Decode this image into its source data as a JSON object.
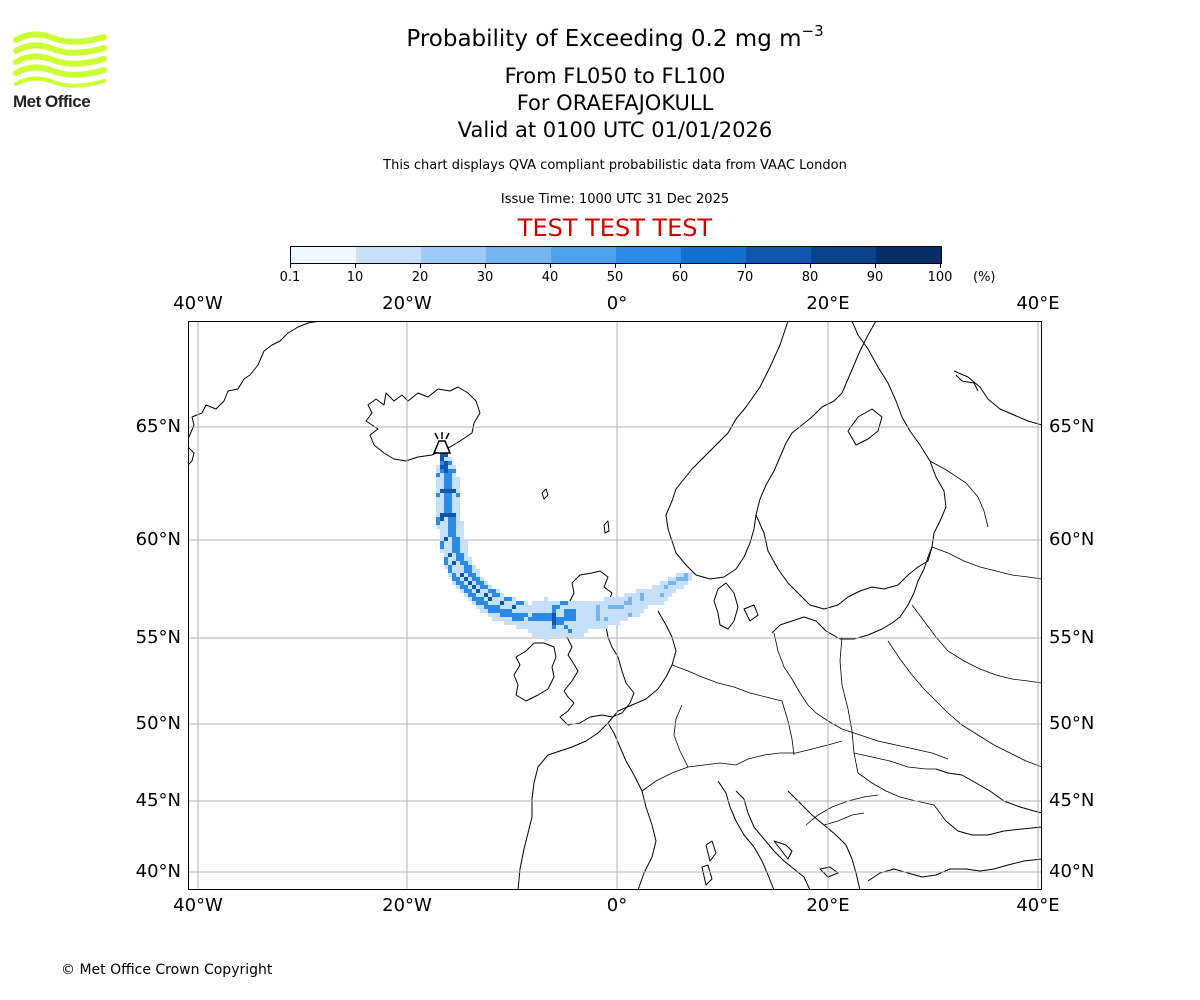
{
  "header": {
    "title_main": "Probability of Exceeding 0.2 mg m",
    "title_sup": "−3",
    "flight_levels": "From FL050 to FL100",
    "volcano_line": "For ORAEFAJOKULL",
    "valid_line": "Valid at 0100 UTC 01/01/2026",
    "description": "This chart displays QVA compliant probabilistic data from VAAC London",
    "issue_time": "Issue Time: 1000 UTC 31 Dec 2025",
    "test_banner": "TEST TEST TEST",
    "test_color": "#d40000"
  },
  "logo": {
    "text": "Met Office",
    "accent_color": "#ccff33",
    "icon": "met-office-wave-logo"
  },
  "colorbar": {
    "colors": [
      "#eef6ff",
      "#c6e0fa",
      "#9ecbf5",
      "#74b6f0",
      "#4ea2ec",
      "#2a8ae6",
      "#146fd0",
      "#0e57ad",
      "#09428a",
      "#052d66"
    ],
    "ticks": [
      "0.1",
      "10",
      "20",
      "30",
      "40",
      "50",
      "60",
      "70",
      "80",
      "90",
      "100"
    ],
    "unit": "(%)"
  },
  "map": {
    "longitude_labels": [
      "40°W",
      "20°W",
      "0°",
      "20°E",
      "40°E"
    ],
    "latitude_labels": [
      "65°N",
      "60°N",
      "55°N",
      "50°N",
      "45°N",
      "40°N"
    ],
    "volcano_icon": "volcano-icon",
    "plume_colors": {
      "core": "#052d66",
      "high": "#0e57ad",
      "mid": "#2a8ae6",
      "low": "#74b6f0",
      "faint": "#c6e0fa"
    }
  },
  "footer": {
    "copyright": "© Met Office Crown Copyright"
  }
}
